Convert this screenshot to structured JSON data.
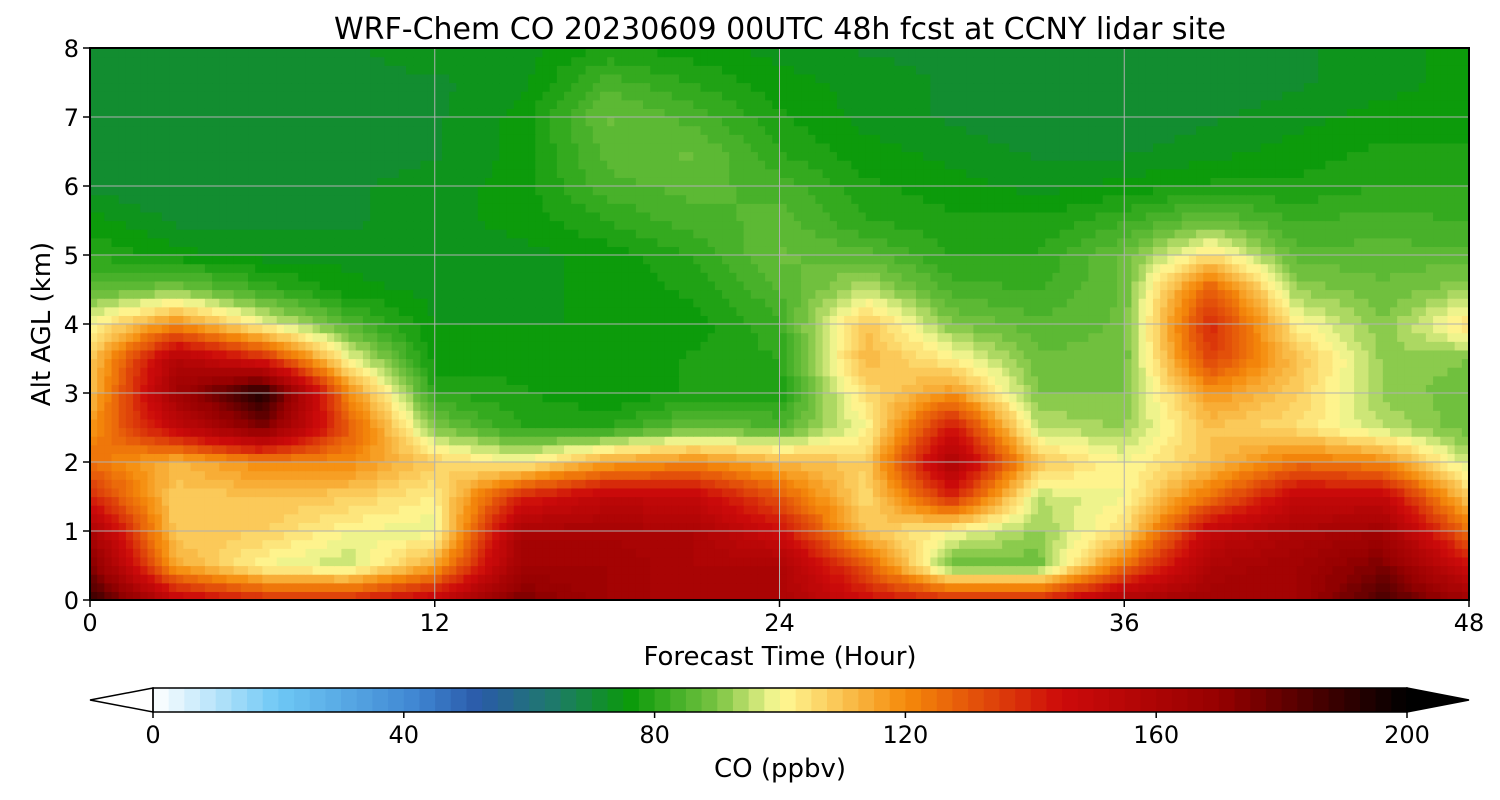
{
  "chart_data": {
    "type": "heatmap",
    "title": "WRF-Chem CO  20230609 00UTC 48h fcst at CCNY lidar site",
    "xlabel": "Forecast Time (Hour)",
    "ylabel": "Alt AGL (km)",
    "xlim": [
      0,
      48
    ],
    "ylim": [
      0,
      8
    ],
    "xticks": [
      "0",
      "12",
      "24",
      "36",
      "48"
    ],
    "yticks": [
      "0",
      "1",
      "2",
      "3",
      "4",
      "5",
      "6",
      "7",
      "8"
    ],
    "grid": true,
    "x": [
      0,
      3,
      6,
      9,
      12,
      15,
      18,
      21,
      24,
      27,
      30,
      33,
      36,
      39,
      42,
      45,
      48
    ],
    "y": [
      0,
      0.5,
      1,
      1.5,
      2,
      2.5,
      3,
      3.5,
      4,
      4.5,
      5,
      5.5,
      6,
      6.5,
      7,
      7.5,
      8
    ],
    "z": [
      [
        190,
        150,
        140,
        140,
        150,
        175,
        165,
        160,
        160,
        145,
        140,
        140,
        160,
        165,
        165,
        185,
        165
      ],
      [
        175,
        115,
        100,
        95,
        115,
        165,
        165,
        160,
        160,
        130,
        88,
        88,
        125,
        160,
        165,
        175,
        145
      ],
      [
        162,
        108,
        108,
        100,
        98,
        162,
        162,
        160,
        145,
        110,
        100,
        92,
        105,
        150,
        160,
        165,
        125
      ],
      [
        140,
        108,
        110,
        108,
        102,
        140,
        152,
        150,
        130,
        105,
        140,
        95,
        100,
        125,
        150,
        150,
        108
      ],
      [
        125,
        112,
        120,
        120,
        108,
        100,
        115,
        120,
        112,
        108,
        160,
        110,
        100,
        110,
        125,
        120,
        95
      ],
      [
        118,
        150,
        175,
        130,
        90,
        80,
        80,
        88,
        85,
        100,
        145,
        95,
        92,
        110,
        105,
        95,
        88
      ],
      [
        110,
        165,
        195,
        120,
        80,
        78,
        75,
        78,
        78,
        105,
        118,
        90,
        90,
        118,
        108,
        92,
        88
      ],
      [
        108,
        158,
        140,
        100,
        76,
        76,
        75,
        78,
        80,
        112,
        102,
        88,
        88,
        135,
        110,
        92,
        90
      ],
      [
        100,
        120,
        100,
        85,
        75,
        75,
        75,
        76,
        82,
        110,
        90,
        86,
        88,
        140,
        102,
        90,
        105
      ],
      [
        86,
        90,
        82,
        76,
        74,
        74,
        76,
        78,
        85,
        95,
        84,
        82,
        88,
        130,
        92,
        88,
        92
      ],
      [
        80,
        76,
        74,
        74,
        74,
        74,
        76,
        80,
        88,
        86,
        80,
        80,
        88,
        105,
        86,
        86,
        86
      ],
      [
        76,
        72,
        72,
        72,
        74,
        76,
        80,
        84,
        86,
        80,
        78,
        78,
        82,
        88,
        82,
        84,
        82
      ],
      [
        72,
        70,
        70,
        72,
        74,
        76,
        84,
        86,
        84,
        78,
        76,
        74,
        76,
        78,
        78,
        80,
        80
      ],
      [
        70,
        70,
        70,
        70,
        72,
        76,
        86,
        88,
        80,
        76,
        74,
        72,
        72,
        74,
        76,
        78,
        78
      ],
      [
        70,
        70,
        70,
        70,
        72,
        76,
        88,
        84,
        78,
        74,
        72,
        70,
        70,
        72,
        74,
        76,
        76
      ],
      [
        70,
        70,
        72,
        72,
        72,
        74,
        84,
        80,
        76,
        74,
        72,
        70,
        70,
        70,
        72,
        74,
        76
      ],
      [
        72,
        70,
        72,
        72,
        74,
        74,
        78,
        76,
        74,
        72,
        72,
        70,
        70,
        70,
        72,
        74,
        76
      ]
    ],
    "colorbar": {
      "label": "CO  (ppbv)",
      "min": 0,
      "max": 200,
      "ticks": [
        "0",
        "40",
        "80",
        "120",
        "160",
        "200"
      ],
      "extend": "both",
      "levels": 80,
      "colors": [
        {
          "v": 0,
          "c": "#ffffff"
        },
        {
          "v": 20,
          "c": "#6ec8f5"
        },
        {
          "v": 42,
          "c": "#3f86d2"
        },
        {
          "v": 52,
          "c": "#2a5aa8"
        },
        {
          "v": 64,
          "c": "#1e7a6a"
        },
        {
          "v": 76,
          "c": "#0a9a0a"
        },
        {
          "v": 90,
          "c": "#7ac443"
        },
        {
          "v": 100,
          "c": "#fffa96"
        },
        {
          "v": 120,
          "c": "#f58a0a"
        },
        {
          "v": 145,
          "c": "#cd0a0a"
        },
        {
          "v": 170,
          "c": "#960000"
        },
        {
          "v": 200,
          "c": "#000000"
        }
      ]
    }
  }
}
